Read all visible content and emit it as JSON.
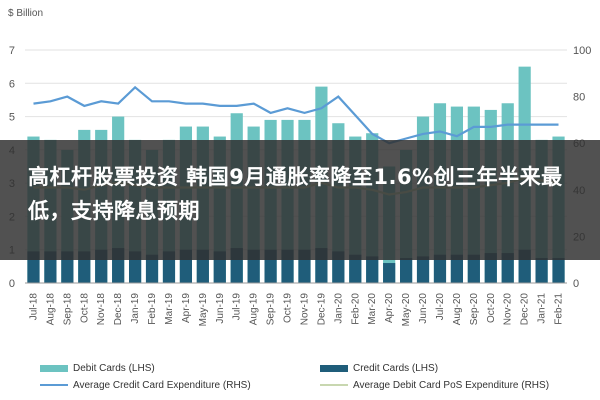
{
  "chart_data": {
    "type": "bar",
    "unit_label": "$ Billion",
    "categories": [
      "Jul-18",
      "Aug-18",
      "Sep-18",
      "Oct-18",
      "Nov-18",
      "Dec-18",
      "Jan-19",
      "Feb-19",
      "Mar-19",
      "Apr-19",
      "May-19",
      "Jun-19",
      "Jul-19",
      "Aug-19",
      "Sep-19",
      "Oct-19",
      "Nov-19",
      "Dec-19",
      "Jan-20",
      "Feb-20",
      "Mar-20",
      "Apr-20",
      "May-20",
      "Jun-20",
      "Jul-20",
      "Aug-20",
      "Sep-20",
      "Oct-20",
      "Nov-20",
      "Dec-20",
      "Jan-21",
      "Feb-21"
    ],
    "series": [
      {
        "name": "Debit Cards (LHS)",
        "axis": "left",
        "kind": "bar",
        "color": "#6cc3c1",
        "values": [
          4.4,
          4.3,
          4.0,
          4.6,
          4.6,
          5.0,
          4.3,
          4.0,
          4.3,
          4.7,
          4.7,
          4.4,
          5.1,
          4.7,
          4.9,
          4.9,
          4.9,
          5.9,
          4.8,
          4.4,
          4.5,
          3.5,
          4.0,
          5.0,
          5.4,
          5.3,
          5.3,
          5.2,
          5.4,
          6.5,
          4.3,
          4.4
        ]
      },
      {
        "name": "Credit Cards (LHS)",
        "axis": "left",
        "kind": "bar",
        "color": "#1f5d7a",
        "values": [
          0.95,
          0.95,
          0.95,
          0.95,
          1.0,
          1.05,
          0.95,
          0.85,
          0.95,
          1.0,
          1.0,
          0.95,
          1.05,
          1.0,
          1.0,
          1.0,
          1.0,
          1.05,
          0.95,
          0.85,
          0.8,
          0.6,
          0.75,
          0.8,
          0.85,
          0.85,
          0.85,
          0.9,
          0.9,
          1.0,
          0.75,
          0.75
        ]
      },
      {
        "name": "Average Credit Card Expenditure (RHS)",
        "axis": "right",
        "kind": "line",
        "color": "#5b9bd5",
        "values": [
          77,
          78,
          80,
          76,
          78,
          77,
          84,
          78,
          78,
          77,
          77,
          76,
          76,
          77,
          73,
          75,
          73,
          75,
          80,
          72,
          64,
          60,
          62,
          64,
          65,
          63,
          67,
          67,
          68,
          68,
          68,
          68
        ]
      },
      {
        "name": "Average Debit Card PoS Expenditure (RHS)",
        "axis": "right",
        "kind": "line",
        "color": "#c8d7b0",
        "values": [
          41,
          41,
          41,
          40,
          42,
          43,
          42,
          41,
          41,
          41,
          41,
          41,
          41,
          41,
          41,
          41,
          41,
          43,
          41,
          41,
          40,
          38,
          39,
          41,
          41,
          41,
          41,
          42,
          43,
          45,
          44,
          43
        ]
      }
    ],
    "left_axis": {
      "ylim": [
        0,
        7
      ],
      "ticks": [
        "0",
        "1",
        "2",
        "3",
        "4",
        "5",
        "6",
        "7"
      ]
    },
    "right_axis": {
      "ylim": [
        0,
        100
      ],
      "ticks": [
        "0",
        "20",
        "40",
        "60",
        "80",
        "100"
      ]
    },
    "legend": "bottom",
    "grid": true
  },
  "banner": {
    "headline": "高杠杆股票投资 韩国9月通胀率降至1.6%创三年半来最低，支持降息预期"
  }
}
